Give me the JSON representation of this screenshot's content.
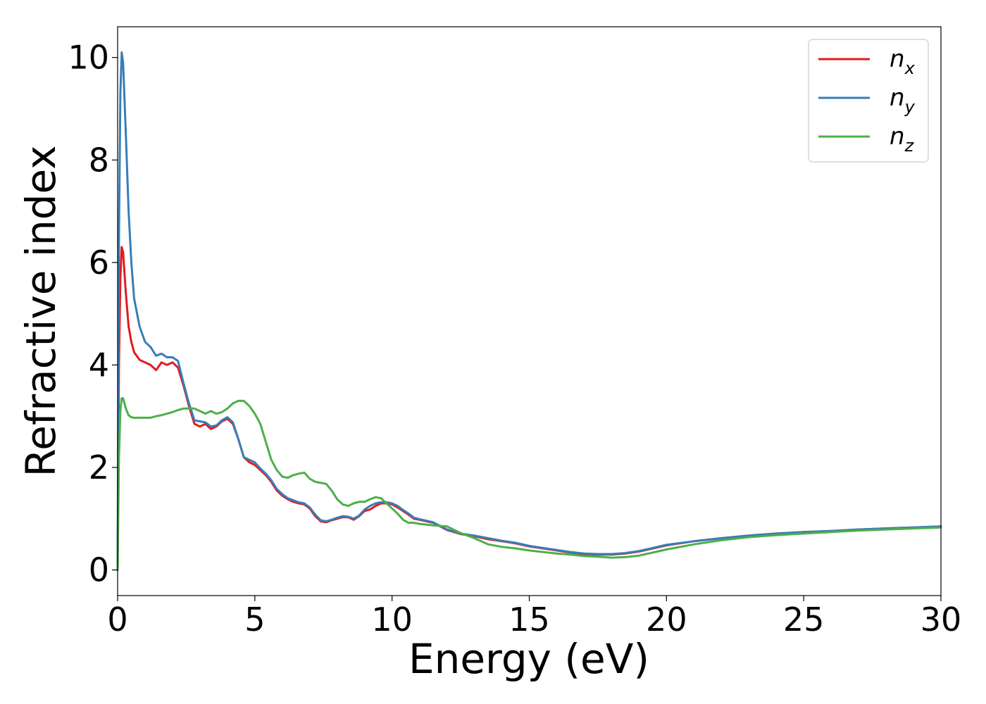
{
  "chart_data": {
    "type": "line",
    "xlabel": "Energy (eV)",
    "ylabel": "Refractive index",
    "xlim": [
      0,
      30
    ],
    "ylim": [
      -0.5,
      10.6
    ],
    "xticks": [
      "0",
      "5",
      "10",
      "15",
      "20",
      "25",
      "30"
    ],
    "yticks": [
      "0",
      "2",
      "4",
      "6",
      "8",
      "10"
    ],
    "grid": false,
    "legend_position": "top-right",
    "series": [
      {
        "name": "n",
        "subscript": "x",
        "color": "#e41a1c",
        "x": [
          0,
          0.05,
          0.1,
          0.15,
          0.2,
          0.3,
          0.4,
          0.5,
          0.6,
          0.8,
          1.0,
          1.2,
          1.4,
          1.6,
          1.8,
          2.0,
          2.2,
          2.4,
          2.6,
          2.8,
          3.0,
          3.2,
          3.4,
          3.6,
          3.8,
          4.0,
          4.2,
          4.4,
          4.6,
          4.8,
          5.0,
          5.2,
          5.4,
          5.6,
          5.8,
          6.0,
          6.2,
          6.4,
          6.6,
          6.8,
          7.0,
          7.2,
          7.4,
          7.6,
          7.8,
          8.0,
          8.2,
          8.4,
          8.6,
          8.8,
          9.0,
          9.2,
          9.4,
          9.6,
          9.8,
          10.0,
          10.2,
          10.4,
          10.6,
          10.8,
          11.0,
          11.5,
          12.0,
          12.5,
          13.0,
          13.5,
          14.0,
          14.5,
          15.0,
          15.5,
          16.0,
          16.5,
          17.0,
          17.5,
          18.0,
          18.5,
          19.0,
          19.5,
          20.0,
          21.0,
          22.0,
          23.0,
          24.0,
          25.0,
          26.0,
          27.0,
          28.0,
          29.0,
          30.0
        ],
        "y": [
          0.0,
          4.0,
          5.7,
          6.3,
          6.2,
          5.4,
          4.75,
          4.45,
          4.25,
          4.1,
          4.05,
          4.0,
          3.9,
          4.05,
          4.0,
          4.05,
          3.95,
          3.6,
          3.2,
          2.85,
          2.8,
          2.85,
          2.75,
          2.8,
          2.9,
          2.95,
          2.85,
          2.55,
          2.2,
          2.1,
          2.05,
          1.95,
          1.85,
          1.72,
          1.55,
          1.45,
          1.38,
          1.33,
          1.3,
          1.28,
          1.2,
          1.05,
          0.95,
          0.93,
          0.97,
          1.0,
          1.03,
          1.03,
          0.98,
          1.05,
          1.15,
          1.18,
          1.25,
          1.3,
          1.3,
          1.28,
          1.22,
          1.15,
          1.08,
          1.0,
          0.98,
          0.92,
          0.78,
          0.7,
          0.66,
          0.6,
          0.56,
          0.52,
          0.46,
          0.42,
          0.38,
          0.34,
          0.31,
          0.3,
          0.3,
          0.32,
          0.36,
          0.42,
          0.48,
          0.56,
          0.62,
          0.67,
          0.71,
          0.74,
          0.76,
          0.79,
          0.81,
          0.83,
          0.85
        ]
      },
      {
        "name": "n",
        "subscript": "y",
        "color": "#377eb8",
        "x": [
          0,
          0.05,
          0.1,
          0.15,
          0.2,
          0.3,
          0.4,
          0.5,
          0.6,
          0.8,
          1.0,
          1.2,
          1.4,
          1.6,
          1.8,
          2.0,
          2.2,
          2.4,
          2.6,
          2.8,
          3.0,
          3.2,
          3.4,
          3.6,
          3.8,
          4.0,
          4.2,
          4.4,
          4.6,
          4.8,
          5.0,
          5.2,
          5.4,
          5.6,
          5.8,
          6.0,
          6.2,
          6.4,
          6.6,
          6.8,
          7.0,
          7.2,
          7.4,
          7.6,
          7.8,
          8.0,
          8.2,
          8.4,
          8.6,
          8.8,
          9.0,
          9.2,
          9.4,
          9.6,
          9.8,
          10.0,
          10.2,
          10.4,
          10.6,
          10.8,
          11.0,
          11.5,
          12.0,
          12.5,
          13.0,
          13.5,
          14.0,
          14.5,
          15.0,
          15.5,
          16.0,
          16.5,
          17.0,
          17.5,
          18.0,
          18.5,
          19.0,
          19.5,
          20.0,
          21.0,
          22.0,
          23.0,
          24.0,
          25.0,
          26.0,
          27.0,
          28.0,
          29.0,
          30.0
        ],
        "y": [
          0.0,
          6.5,
          9.3,
          10.1,
          9.9,
          8.5,
          7.0,
          6.0,
          5.3,
          4.75,
          4.45,
          4.35,
          4.18,
          4.22,
          4.15,
          4.15,
          4.08,
          3.65,
          3.25,
          2.92,
          2.9,
          2.88,
          2.8,
          2.82,
          2.92,
          2.98,
          2.88,
          2.55,
          2.2,
          2.15,
          2.1,
          1.98,
          1.88,
          1.75,
          1.58,
          1.48,
          1.4,
          1.36,
          1.32,
          1.3,
          1.22,
          1.08,
          0.97,
          0.95,
          0.98,
          1.02,
          1.05,
          1.04,
          1.0,
          1.06,
          1.18,
          1.25,
          1.3,
          1.32,
          1.32,
          1.3,
          1.25,
          1.17,
          1.1,
          1.02,
          0.99,
          0.93,
          0.79,
          0.71,
          0.67,
          0.62,
          0.57,
          0.53,
          0.47,
          0.43,
          0.39,
          0.35,
          0.32,
          0.31,
          0.31,
          0.33,
          0.37,
          0.43,
          0.49,
          0.56,
          0.62,
          0.67,
          0.71,
          0.74,
          0.76,
          0.79,
          0.81,
          0.83,
          0.85
        ]
      },
      {
        "name": "n",
        "subscript": "z",
        "color": "#4daf4a",
        "x": [
          0,
          0.05,
          0.1,
          0.15,
          0.2,
          0.3,
          0.4,
          0.5,
          0.6,
          0.8,
          1.0,
          1.2,
          1.4,
          1.6,
          1.8,
          2.0,
          2.2,
          2.4,
          2.6,
          2.8,
          3.0,
          3.2,
          3.4,
          3.6,
          3.8,
          4.0,
          4.2,
          4.4,
          4.6,
          4.8,
          5.0,
          5.2,
          5.4,
          5.6,
          5.8,
          6.0,
          6.2,
          6.4,
          6.6,
          6.8,
          7.0,
          7.2,
          7.4,
          7.6,
          7.8,
          8.0,
          8.2,
          8.4,
          8.6,
          8.8,
          9.0,
          9.2,
          9.4,
          9.6,
          9.8,
          10.0,
          10.2,
          10.4,
          10.6,
          10.8,
          11.0,
          11.5,
          12.0,
          12.5,
          13.0,
          13.5,
          14.0,
          14.5,
          15.0,
          15.5,
          16.0,
          16.5,
          17.0,
          17.5,
          18.0,
          18.5,
          19.0,
          19.5,
          20.0,
          21.0,
          22.0,
          23.0,
          24.0,
          25.0,
          26.0,
          27.0,
          28.0,
          29.0,
          30.0
        ],
        "y": [
          0.0,
          2.2,
          3.1,
          3.35,
          3.35,
          3.15,
          3.02,
          2.98,
          2.97,
          2.97,
          2.97,
          2.97,
          3.0,
          3.02,
          3.05,
          3.08,
          3.12,
          3.15,
          3.15,
          3.15,
          3.1,
          3.05,
          3.1,
          3.05,
          3.08,
          3.15,
          3.25,
          3.3,
          3.3,
          3.2,
          3.05,
          2.85,
          2.5,
          2.15,
          1.95,
          1.82,
          1.8,
          1.85,
          1.88,
          1.9,
          1.78,
          1.72,
          1.7,
          1.68,
          1.55,
          1.38,
          1.28,
          1.25,
          1.3,
          1.33,
          1.33,
          1.38,
          1.42,
          1.4,
          1.3,
          1.2,
          1.1,
          0.98,
          0.92,
          0.92,
          0.9,
          0.87,
          0.85,
          0.72,
          0.62,
          0.5,
          0.45,
          0.42,
          0.38,
          0.35,
          0.32,
          0.3,
          0.27,
          0.26,
          0.24,
          0.25,
          0.28,
          0.34,
          0.4,
          0.5,
          0.58,
          0.64,
          0.68,
          0.71,
          0.74,
          0.77,
          0.79,
          0.81,
          0.83
        ]
      }
    ]
  }
}
